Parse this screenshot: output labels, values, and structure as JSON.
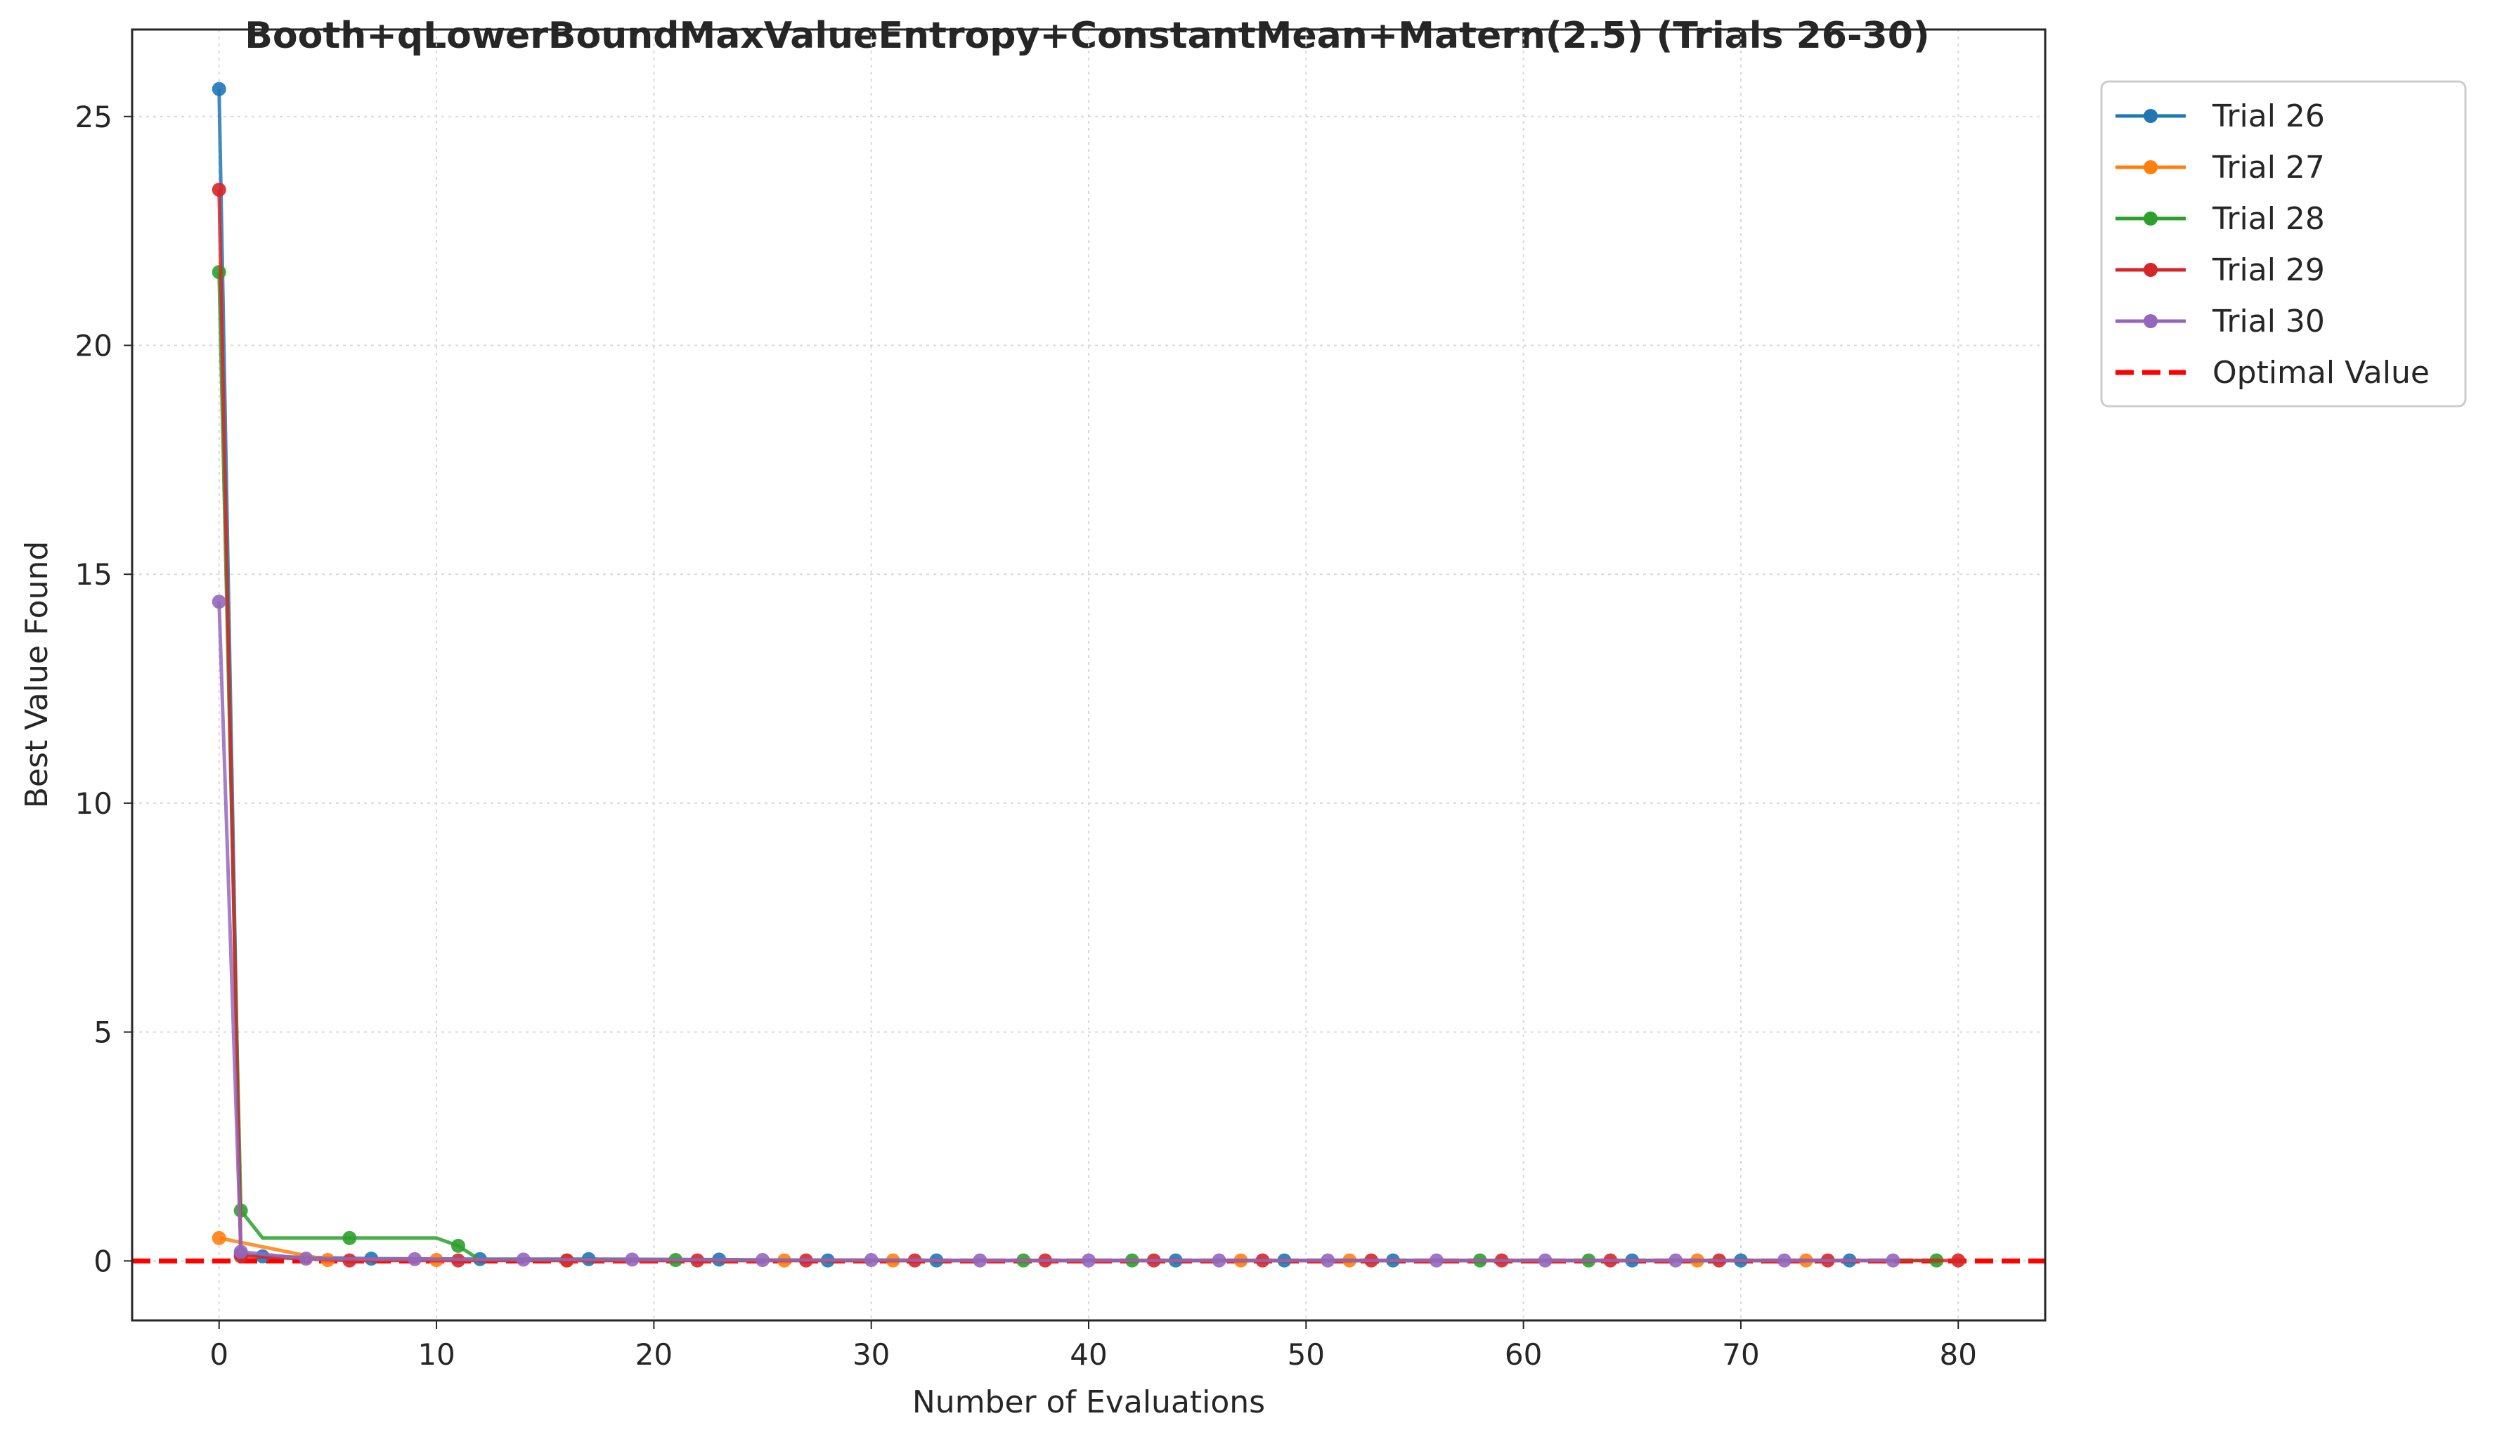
{
  "chart_data": {
    "type": "line",
    "title": "Booth+qLowerBoundMaxValueEntropy+ConstantMean+Matern(2.5) (Trials 26-30)",
    "xlabel": "Number of Evaluations",
    "ylabel": "Best Value Found",
    "xlim": [
      -4,
      84
    ],
    "ylim": [
      -1.3,
      26.9
    ],
    "xticks": [
      0,
      10,
      20,
      30,
      40,
      50,
      60,
      70,
      80
    ],
    "yticks": [
      0,
      5,
      10,
      15,
      20,
      25
    ],
    "grid": true,
    "legend_position": "outside-top-right",
    "series": [
      {
        "name": "Trial 26",
        "color": "#1f77b4",
        "x": [
          0,
          1,
          2,
          7,
          12,
          17,
          23,
          28,
          33,
          44,
          49,
          54,
          65,
          70,
          75
        ],
        "y": [
          25.6,
          0.15,
          0.1,
          0.05,
          0.04,
          0.04,
          0.03,
          0.01,
          0.01,
          0.01,
          0.01,
          0.01,
          0.01,
          0.01,
          0.01
        ]
      },
      {
        "name": "Trial 27",
        "color": "#ff7f0e",
        "x": [
          0,
          5,
          10,
          16,
          26,
          31,
          47,
          52,
          68,
          73
        ],
        "y": [
          0.5,
          0.02,
          0.02,
          0.01,
          0.01,
          0.01,
          0.01,
          0.01,
          0.01,
          0.01
        ],
        "markers_only_after_first": true
      },
      {
        "name": "Trial 28",
        "color": "#2ca02c",
        "x": [
          0,
          1,
          2,
          6,
          10,
          11,
          12,
          21,
          37,
          42,
          58,
          63,
          79
        ],
        "y": [
          21.6,
          1.1,
          0.5,
          0.5,
          0.5,
          0.33,
          0.02,
          0.02,
          0.01,
          0.01,
          0.01,
          0.01,
          0.01
        ],
        "marker_x": [
          0,
          1,
          6,
          11,
          21,
          37,
          42,
          58,
          63,
          79
        ]
      },
      {
        "name": "Trial 29",
        "color": "#d62728",
        "x": [
          0,
          1,
          6,
          11,
          16,
          22,
          27,
          32,
          38,
          43,
          48,
          53,
          59,
          64,
          69,
          74,
          80
        ],
        "y": [
          23.4,
          0.1,
          0.01,
          0.01,
          0.01,
          0.01,
          0.01,
          0.01,
          0.01,
          0.01,
          0.01,
          0.01,
          0.01,
          0.01,
          0.01,
          0.01,
          0.01
        ]
      },
      {
        "name": "Trial 30",
        "color": "#9467bd",
        "x": [
          0,
          1,
          4,
          9,
          14,
          19,
          25,
          30,
          35,
          40,
          46,
          51,
          56,
          61,
          67,
          72,
          77
        ],
        "y": [
          14.4,
          0.2,
          0.05,
          0.04,
          0.03,
          0.03,
          0.02,
          0.02,
          0.01,
          0.01,
          0.01,
          0.01,
          0.01,
          0.01,
          0.01,
          0.01,
          0.01
        ]
      }
    ],
    "reference_line": {
      "name": "Optimal Value",
      "y": 0,
      "color": "#ff0000",
      "style": "dashed"
    }
  }
}
